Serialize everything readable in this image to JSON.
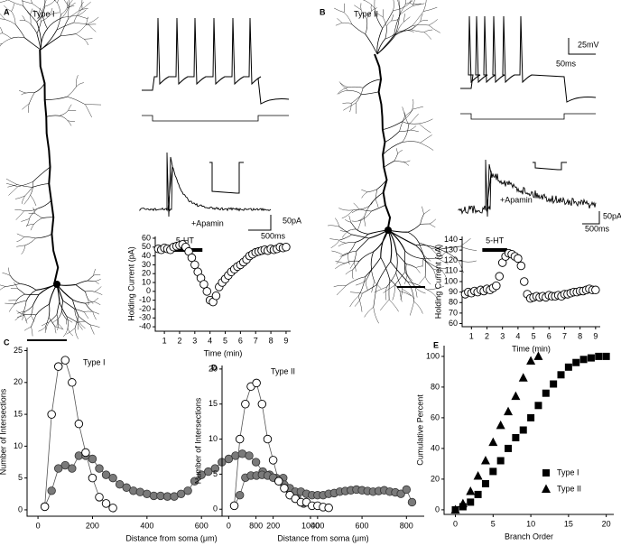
{
  "panels": [
    {
      "letter": "A",
      "title": "Type I",
      "drug": "+Apamin",
      "scale_labels": [
        "50pA",
        "500ms"
      ]
    },
    {
      "letter": "B",
      "title": "Type II",
      "drug": "+Apamin",
      "scale_labels": [
        "25mV",
        "50ms",
        "50pA",
        "500ms"
      ]
    }
  ],
  "chart_data": [
    {
      "type": "scatter",
      "xlabel": "Time (min)",
      "ylabel": "Holding Current (pA)",
      "xlim": [
        0.4,
        9.3
      ],
      "ylim": [
        -45,
        62
      ],
      "xticks": [
        1,
        2,
        3,
        4,
        5,
        6,
        7,
        8,
        9
      ],
      "yticks": [
        -40,
        -30,
        -20,
        -10,
        0,
        10,
        20,
        30,
        40,
        50,
        60
      ],
      "annotation": {
        "text": "5-HT",
        "span": [
          1.2,
          3.5
        ]
      },
      "series": [
        {
          "marker": "open-circle",
          "color": "#ffffff",
          "line": false,
          "x": [
            0.6,
            0.8,
            1.0,
            1.2,
            1.4,
            1.6,
            1.8,
            2.0,
            2.2,
            2.4,
            2.6,
            2.8,
            3.0,
            3.2,
            3.4,
            3.6,
            3.8,
            4.0,
            4.2,
            4.4,
            4.6,
            4.8,
            5.0,
            5.2,
            5.4,
            5.6,
            5.8,
            6.0,
            6.2,
            6.4,
            6.6,
            6.8,
            7.0,
            7.2,
            7.4,
            7.6,
            7.8,
            8.0,
            8.2,
            8.4,
            8.6,
            8.8,
            9.0
          ],
          "values": [
            48,
            47,
            49,
            48,
            47,
            50,
            51,
            52,
            53,
            50,
            45,
            38,
            30,
            22,
            15,
            8,
            0,
            -10,
            -12,
            -5,
            5,
            10,
            14,
            18,
            22,
            25,
            28,
            30,
            33,
            36,
            40,
            42,
            44,
            45,
            46,
            47,
            46,
            48,
            47,
            48,
            50,
            49,
            50
          ]
        }
      ]
    },
    {
      "type": "scatter",
      "xlabel": "Time (min)",
      "ylabel": "Holding Current (pA)",
      "xlim": [
        0.4,
        9.3
      ],
      "ylim": [
        57,
        143
      ],
      "xticks": [
        1,
        2,
        3,
        4,
        5,
        6,
        7,
        8,
        9
      ],
      "yticks": [
        60,
        70,
        80,
        90,
        100,
        110,
        120,
        130,
        140
      ],
      "annotation": {
        "text": "5-HT",
        "span": [
          1.7,
          3.3
        ]
      },
      "series": [
        {
          "marker": "open-circle",
          "color": "#ffffff",
          "line": false,
          "x": [
            0.6,
            0.8,
            1.0,
            1.2,
            1.4,
            1.6,
            1.8,
            2.0,
            2.2,
            2.4,
            2.6,
            2.8,
            3.0,
            3.2,
            3.4,
            3.6,
            3.8,
            4.0,
            4.2,
            4.4,
            4.6,
            4.8,
            5.0,
            5.2,
            5.4,
            5.6,
            5.8,
            6.0,
            6.2,
            6.4,
            6.6,
            6.8,
            7.0,
            7.2,
            7.4,
            7.6,
            7.8,
            8.0,
            8.2,
            8.4,
            8.6,
            8.8,
            9.0
          ],
          "values": [
            88,
            90,
            89,
            91,
            90,
            92,
            91,
            93,
            92,
            94,
            96,
            105,
            118,
            124,
            127,
            126,
            124,
            122,
            115,
            100,
            88,
            84,
            85,
            86,
            85,
            86,
            85,
            87,
            86,
            86,
            87,
            86,
            88,
            88,
            89,
            90,
            90,
            91,
            91,
            92,
            93,
            92,
            92
          ]
        }
      ]
    },
    {
      "type": "scatter",
      "panel": "C",
      "title": "Type I",
      "xlabel": "Distance from soma (μm)",
      "ylabel": "Number of Intersections",
      "xlim": [
        -40,
        1020
      ],
      "ylim": [
        -1,
        25.5
      ],
      "xticks": [
        0,
        200,
        400,
        600,
        800,
        1000
      ],
      "yticks": [
        0,
        5,
        10,
        15,
        20,
        25
      ],
      "series": [
        {
          "marker": "filled-circle",
          "color": "#7a7a7a",
          "line": true,
          "x": [
            25,
            50,
            75,
            100,
            125,
            150,
            175,
            200,
            225,
            250,
            275,
            300,
            325,
            350,
            375,
            400,
            425,
            450,
            475,
            500,
            525,
            550,
            575,
            600,
            625,
            650,
            675,
            700,
            725,
            750,
            775,
            800,
            825,
            850,
            875,
            900,
            925,
            950,
            975
          ],
          "values": [
            0.5,
            3,
            6.5,
            7,
            6.5,
            8.5,
            8.5,
            8,
            6.5,
            5.5,
            5,
            4,
            3.5,
            3,
            2.8,
            2.5,
            2.2,
            2.2,
            2.1,
            2.1,
            2.5,
            3,
            4.5,
            5.5,
            6,
            6.5,
            7.5,
            8,
            8.5,
            8.8,
            8.5,
            7.5,
            6,
            5.5,
            5,
            5,
            3,
            2,
            1
          ]
        },
        {
          "marker": "open-circle",
          "color": "#ffffff",
          "line": true,
          "x": [
            25,
            50,
            75,
            100,
            125,
            150,
            175,
            200,
            225,
            250,
            275
          ],
          "values": [
            0.5,
            15,
            22.5,
            23.5,
            20,
            13.5,
            9,
            5,
            2,
            1,
            0.3
          ]
        }
      ]
    },
    {
      "type": "scatter",
      "panel": "D",
      "title": "Type II",
      "xlabel": "Distance from soma (μm)",
      "ylabel": "Number of Intersections",
      "xlim": [
        -30,
        880
      ],
      "ylim": [
        -1,
        20.5
      ],
      "xticks": [
        0,
        200,
        400,
        600,
        800
      ],
      "yticks": [
        0,
        5,
        10,
        15,
        20
      ],
      "series": [
        {
          "marker": "filled-circle",
          "color": "#7a7a7a",
          "line": true,
          "x": [
            25,
            50,
            75,
            100,
            125,
            150,
            175,
            200,
            225,
            250,
            275,
            300,
            325,
            350,
            375,
            400,
            425,
            450,
            475,
            500,
            525,
            550,
            575,
            600,
            625,
            650,
            675,
            700,
            725,
            750,
            775,
            800,
            825
          ],
          "values": [
            0.5,
            2,
            4.5,
            4.8,
            4.8,
            4.9,
            4.8,
            4.5,
            4,
            3.5,
            3,
            2.5,
            2.5,
            2.2,
            2,
            2,
            2,
            2.2,
            2.3,
            2.5,
            2.6,
            2.7,
            2.8,
            2.7,
            2.6,
            2.5,
            2.6,
            2.7,
            2.5,
            2.4,
            2.2,
            2.8,
            1
          ]
        },
        {
          "marker": "open-circle",
          "color": "#ffffff",
          "line": true,
          "x": [
            25,
            50,
            75,
            100,
            125,
            150,
            175,
            200,
            225,
            250,
            275,
            300,
            325,
            350,
            375,
            400,
            425,
            450
          ],
          "values": [
            0.5,
            10,
            15,
            17.5,
            18,
            15,
            10,
            7,
            4,
            3,
            2,
            1.5,
            1,
            1,
            0.5,
            0.5,
            0.3,
            0.2
          ]
        }
      ]
    },
    {
      "type": "scatter",
      "panel": "E",
      "xlabel": "Branch Order",
      "ylabel": "Cumulative Percent",
      "xlim": [
        -1.5,
        21
      ],
      "ylim": [
        -3,
        107
      ],
      "xticks": [
        0,
        5,
        10,
        15,
        20
      ],
      "yticks": [
        0,
        20,
        40,
        60,
        80,
        100
      ],
      "legend": "lower right",
      "series": [
        {
          "name": "Type I",
          "marker": "square",
          "color": "#000000",
          "line": false,
          "x": [
            0,
            1,
            2,
            3,
            4,
            5,
            6,
            7,
            8,
            9,
            10,
            11,
            12,
            13,
            14,
            15,
            16,
            17,
            18,
            19,
            20
          ],
          "values": [
            0,
            2,
            5,
            10,
            17,
            25,
            32,
            40,
            47,
            52,
            60,
            68,
            76,
            82,
            88,
            93,
            96,
            98,
            99,
            100,
            100
          ]
        },
        {
          "name": "Type II",
          "marker": "triangle",
          "color": "#000000",
          "line": false,
          "x": [
            0,
            1,
            2,
            3,
            4,
            5,
            6,
            7,
            8,
            9,
            10,
            11
          ],
          "values": [
            0,
            4,
            12,
            22,
            32,
            44,
            55,
            64,
            74,
            86,
            97,
            100
          ]
        }
      ]
    }
  ]
}
